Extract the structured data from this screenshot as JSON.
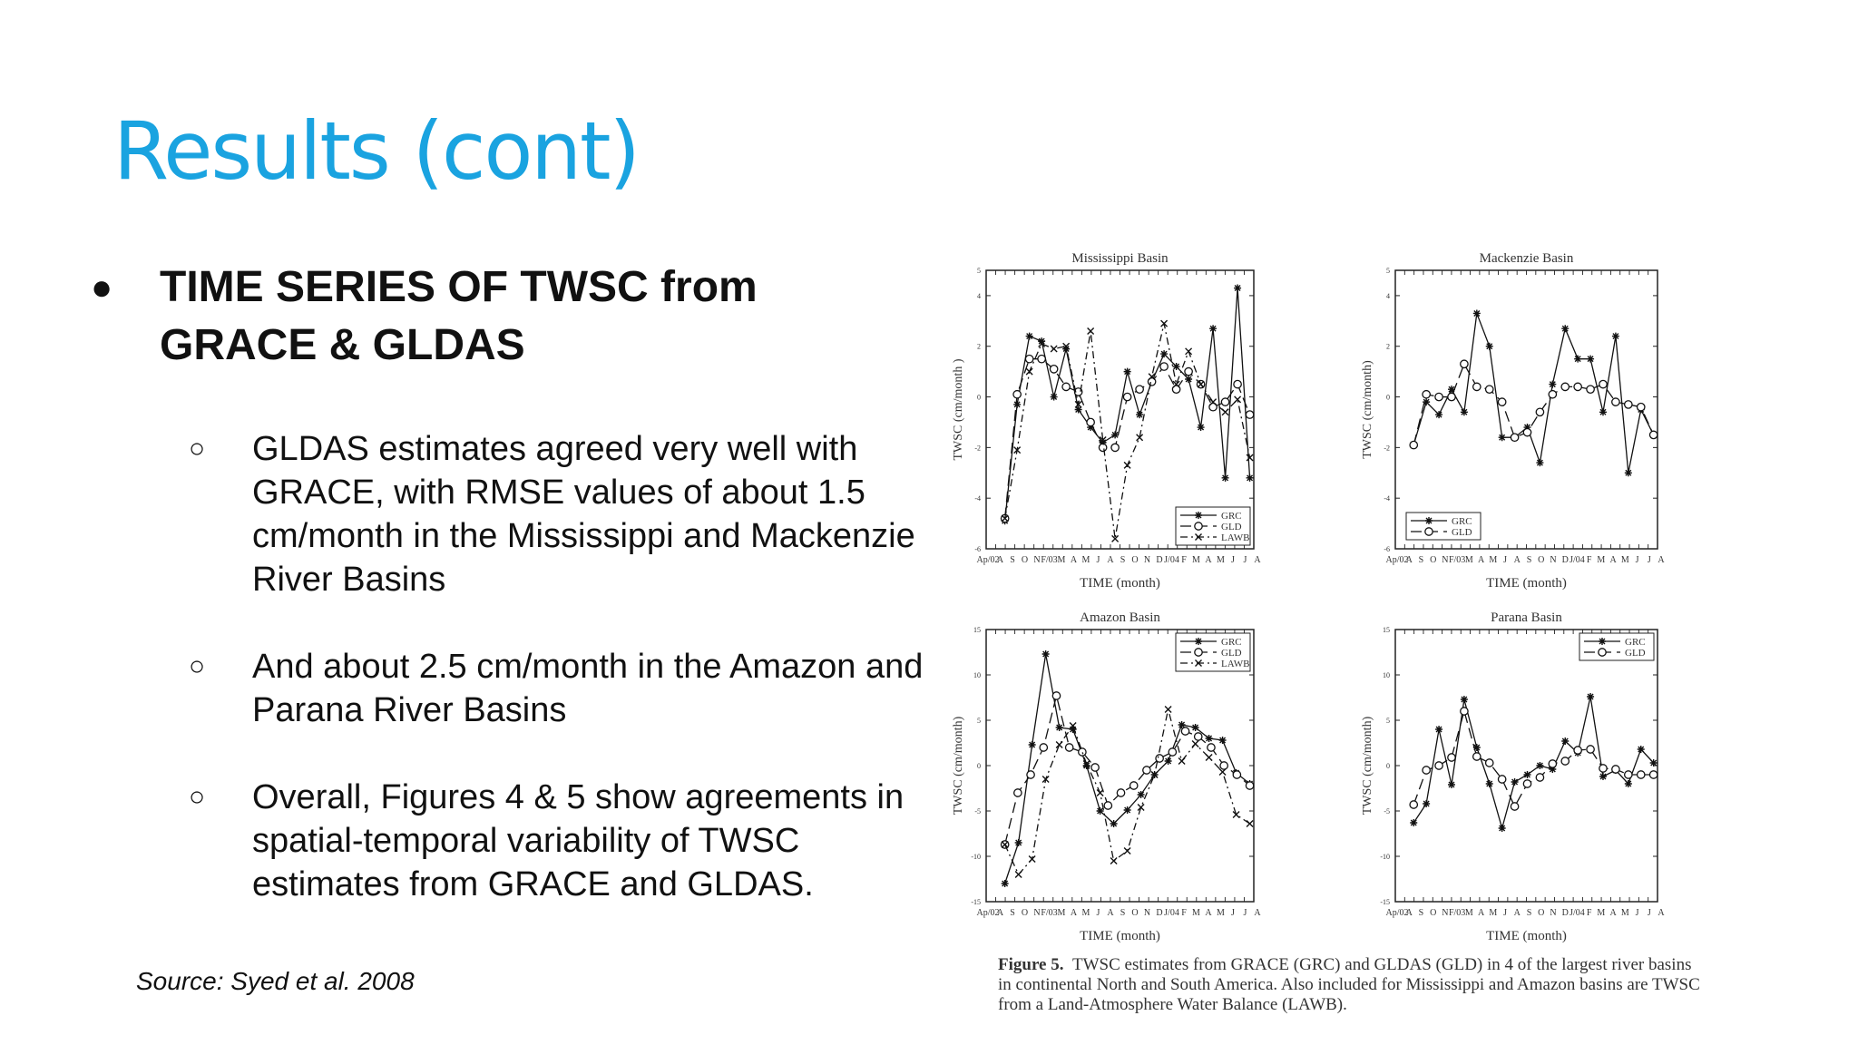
{
  "slide": {
    "title": "Results (cont)",
    "bullet": "TIME SERIES OF TWSC from GRACE & GLDAS",
    "subbullets": [
      "GLDAS estimates agreed very well with GRACE, with RMSE values of about 1.5 cm/month in the Mississippi and Mackenzie River Basins",
      "And about 2.5 cm/month in the Amazon and Parana River Basins",
      "Overall, Figures 4 & 5 show agreements in spatial-temporal variability of TWSC estimates from GRACE and GLDAS."
    ],
    "source": "Source: Syed et al. 2008"
  },
  "caption": {
    "label": "Figure 5.",
    "text": "TWSC estimates from GRACE (GRC) and GLDAS (GLD) in 4 of the largest river basins in continental North and South America. Also included for Mississippi and Amazon basins are TWSC from a Land-Atmosphere Water Balance (LAWB)."
  },
  "chart_data": [
    {
      "type": "line",
      "title": "Mississippi Basin",
      "xlabel": "TIME (month)",
      "ylabel": "TWSC (cm/month )",
      "ylim": [
        -6,
        5
      ],
      "yticks": [
        -6,
        -4,
        -2,
        0,
        2,
        4,
        5
      ],
      "x_tick_labels": [
        "Ap/02",
        "A",
        "S",
        "O",
        "N",
        "F/03",
        "M",
        "A",
        "M",
        "J",
        "A",
        "S",
        "O",
        "N",
        "D",
        "J/04",
        "F",
        "M",
        "A",
        "M",
        "J",
        "J",
        "A"
      ],
      "legend_position": "bottom-right",
      "series": [
        {
          "name": "GRC",
          "values": [
            -4.9,
            -0.3,
            2.4,
            2.2,
            0,
            1.9,
            -0.5,
            -1.2,
            -1.8,
            -1.5,
            1.0,
            -0.7,
            0.6,
            1.7,
            1.2,
            0.7,
            -1.2,
            2.7,
            -3.2,
            4.3,
            -3.2
          ]
        },
        {
          "name": "GLD",
          "values": [
            -4.8,
            0.1,
            1.5,
            1.5,
            1.1,
            0.4,
            0.2,
            -1.0,
            -2.0,
            -2.0,
            0,
            0.3,
            0.6,
            1.2,
            0.3,
            1.0,
            0.5,
            -0.4,
            -0.2,
            0.5,
            -0.7
          ]
        },
        {
          "name": "LAWB",
          "values": [
            -4.8,
            -2.1,
            1.0,
            2.1,
            1.9,
            2.0,
            -0.3,
            2.6,
            -1.7,
            -5.6,
            -2.7,
            -1.6,
            0.8,
            2.9,
            0.5,
            1.8,
            0.5,
            -0.2,
            -0.6,
            -0.1,
            -2.4
          ]
        }
      ]
    },
    {
      "type": "line",
      "title": "Mackenzie Basin",
      "xlabel": "TIME (month)",
      "ylabel": "TWSC (cm/month)",
      "ylim": [
        -6,
        5
      ],
      "yticks": [
        -6,
        -4,
        -2,
        0,
        2,
        4,
        5
      ],
      "x_tick_labels": [
        "Ap/02",
        "A",
        "S",
        "O",
        "N",
        "F/03",
        "M",
        "A",
        "M",
        "J",
        "A",
        "S",
        "O",
        "N",
        "D",
        "J/04",
        "F",
        "M",
        "A",
        "M",
        "J",
        "J",
        "A"
      ],
      "legend_position": "bottom-left",
      "series": [
        {
          "name": "GRC",
          "values": [
            -1.9,
            -0.2,
            -0.7,
            0.3,
            -0.6,
            3.3,
            2.0,
            -1.6,
            -1.6,
            -1.2,
            -2.6,
            0.5,
            2.7,
            1.5,
            1.5,
            -0.6,
            2.4,
            -3.0,
            -0.5,
            -1.5
          ]
        },
        {
          "name": "GLD",
          "values": [
            -1.9,
            0.1,
            0,
            0,
            1.3,
            0.4,
            0.3,
            -0.2,
            -1.6,
            -1.4,
            -0.6,
            0.1,
            0.4,
            0.4,
            0.3,
            0.5,
            -0.2,
            -0.3,
            -0.4,
            -1.5
          ]
        }
      ]
    },
    {
      "type": "line",
      "title": "Amazon Basin",
      "xlabel": "TIME (month)",
      "ylabel": "TWSC (cm/month)",
      "ylim": [
        -15,
        15
      ],
      "yticks": [
        -15,
        -10,
        -5,
        0,
        5,
        10,
        15
      ],
      "x_tick_labels": [
        "Ap/02",
        "A",
        "S",
        "O",
        "N",
        "F/03",
        "M",
        "A",
        "M",
        "J",
        "A",
        "S",
        "O",
        "N",
        "D",
        "J/04",
        "F",
        "M",
        "A",
        "M",
        "J",
        "J",
        "A"
      ],
      "legend_position": "top-right",
      "series": [
        {
          "name": "GRC",
          "values": [
            -13,
            -8.5,
            2.3,
            12.3,
            4.2,
            4.0,
            0,
            -5,
            -6.4,
            -4.9,
            -3.2,
            -1.0,
            0.5,
            4.5,
            4.2,
            3.0,
            2.8,
            -0.8,
            -2.0
          ]
        },
        {
          "name": "GLD",
          "values": [
            -8.7,
            -3,
            -1,
            2.0,
            7.7,
            2.0,
            1.5,
            -0.2,
            -4.4,
            -3.0,
            -2.2,
            -0.5,
            0.8,
            1.5,
            3.8,
            3.2,
            2.0,
            0,
            -1.0,
            -2.2
          ]
        },
        {
          "name": "LAWB",
          "values": [
            -8.7,
            -12,
            -10.3,
            -1.5,
            2.3,
            4.4,
            0.2,
            -3,
            -10.5,
            -9.4,
            -4.6,
            -1.0,
            6.2,
            0.5,
            2.4,
            0.9,
            -0.7,
            -5.4,
            -6.4
          ]
        }
      ]
    },
    {
      "type": "line",
      "title": "Parana Basin",
      "xlabel": "TIME (month)",
      "ylabel": "TWSC (cm/month)",
      "ylim": [
        -15,
        15
      ],
      "yticks": [
        -15,
        -10,
        -5,
        0,
        5,
        10,
        15
      ],
      "x_tick_labels": [
        "Ap/02",
        "A",
        "S",
        "O",
        "N",
        "F/03",
        "M",
        "A",
        "M",
        "J",
        "A",
        "S",
        "O",
        "N",
        "D",
        "J/04",
        "F",
        "M",
        "A",
        "M",
        "J",
        "J",
        "A"
      ],
      "legend_position": "top-right",
      "series": [
        {
          "name": "GRC",
          "values": [
            -6.3,
            -4.2,
            4.0,
            -2.1,
            7.3,
            2.0,
            -2.0,
            -6.9,
            -1.8,
            -1.0,
            0,
            -0.4,
            2.7,
            1.4,
            7.6,
            -1.2,
            -0.5,
            -2.0,
            1.8,
            0.3
          ]
        },
        {
          "name": "GLD",
          "values": [
            -4.3,
            -0.5,
            0,
            0.9,
            6.0,
            1.0,
            0.3,
            -1.5,
            -4.5,
            -2.0,
            -1.3,
            0.2,
            0.5,
            1.7,
            1.8,
            -0.3,
            -0.4,
            -1.0,
            -1.0,
            -1.0
          ]
        }
      ]
    }
  ]
}
